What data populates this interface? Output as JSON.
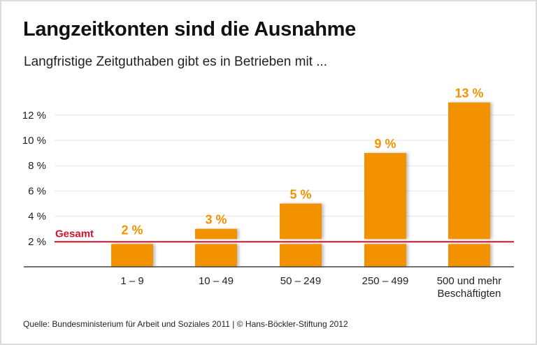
{
  "title": "Langzeitkonten sind die Ausnahme",
  "subtitle": "Langfristige Zeitguthaben gibt es in Betrieben mit ...",
  "source": "Quelle: Bundesministerium für Arbeit und Soziales 2011 | © Hans-Böckler-Stiftung 2012",
  "chart_data": {
    "type": "bar",
    "categories": [
      "1 – 9",
      "10 – 49",
      "50 – 249",
      "250 – 499",
      "500 und mehr\nBeschäftigten"
    ],
    "values": [
      2,
      3,
      5,
      9,
      13
    ],
    "data_labels": [
      "2 %",
      "3 %",
      "5 %",
      "9 %",
      "13 %"
    ],
    "yticks": [
      2,
      4,
      6,
      8,
      10,
      12
    ],
    "ytick_labels": [
      "2 %",
      "4 %",
      "6 %",
      "8 %",
      "10 %",
      "12 %"
    ],
    "ylim": [
      0,
      13
    ],
    "grid": true,
    "reference_line": {
      "label": "Gesamt",
      "value": 2,
      "color": "#d0122c"
    },
    "bar_color": "#f39200"
  }
}
